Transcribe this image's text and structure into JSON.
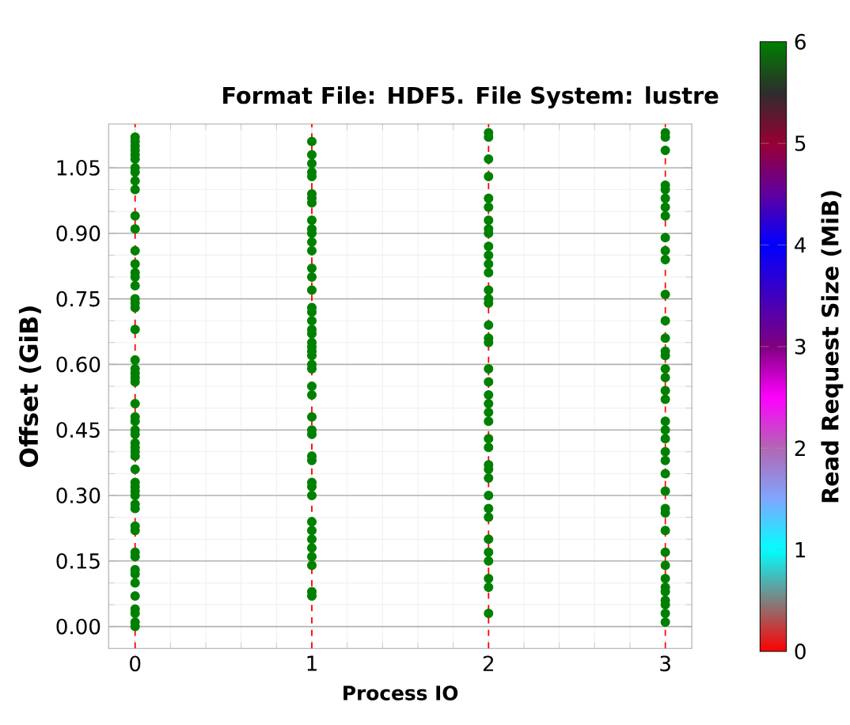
{
  "chart_data": {
    "type": "scatter",
    "title": "Format File: HDF5. File System: lustre",
    "xlabel": "Process IO",
    "ylabel": "Offset (GiB)",
    "clabel": "Read Request Size (MiB)",
    "xlim": [
      -0.15,
      3.15
    ],
    "ylim": [
      -0.05,
      1.15
    ],
    "xticks": [
      0,
      1,
      2,
      3
    ],
    "yticks": [
      {
        "value": 0,
        "label": "0.00"
      },
      {
        "value": 0.15,
        "label": "0.15"
      },
      {
        "value": 0.3,
        "label": "0.30"
      },
      {
        "value": 0.45,
        "label": "0.45"
      },
      {
        "value": 0.6,
        "label": "0.60"
      },
      {
        "value": 0.75,
        "label": "0.75"
      },
      {
        "value": 0.9,
        "label": "0.90"
      },
      {
        "value": 1.05,
        "label": "1.05"
      }
    ],
    "clim": [
      0,
      6
    ],
    "cticks": [
      0,
      1,
      2,
      3,
      4,
      5,
      6
    ],
    "grid": true,
    "marker": "circle",
    "ref_lines": [
      {
        "axis": "x",
        "value": 0,
        "color": "#ff0000",
        "line_style": "dashed"
      },
      {
        "axis": "x",
        "value": 1,
        "color": "#ff0000",
        "line_style": "dashed"
      },
      {
        "axis": "x",
        "value": 2,
        "color": "#ff0000",
        "line_style": "dashed"
      },
      {
        "axis": "x",
        "value": 3,
        "color": "#ff0000",
        "line_style": "dashed"
      }
    ],
    "series": [
      {
        "x": [
          0,
          0,
          0,
          0,
          0,
          0,
          0,
          0,
          0,
          0,
          0,
          0,
          0,
          0,
          0,
          0,
          0,
          0,
          0,
          0,
          0,
          0,
          0,
          0,
          0,
          0,
          0,
          0,
          0,
          0,
          0,
          0,
          0,
          0,
          0,
          0,
          0,
          0,
          0,
          0,
          0,
          0,
          0,
          0,
          0,
          0,
          0,
          0,
          0,
          0,
          0,
          0,
          0,
          0
        ],
        "values": [
          0.0,
          0.01,
          0.03,
          0.04,
          0.07,
          0.1,
          0.12,
          0.13,
          0.16,
          0.17,
          0.22,
          0.23,
          0.27,
          0.28,
          0.3,
          0.31,
          0.32,
          0.33,
          0.36,
          0.39,
          0.4,
          0.41,
          0.42,
          0.44,
          0.45,
          0.47,
          0.48,
          0.51,
          0.56,
          0.57,
          0.58,
          0.59,
          0.61,
          0.68,
          0.73,
          0.74,
          0.75,
          0.78,
          0.8,
          0.81,
          0.83,
          0.86,
          0.91,
          0.94,
          1.0,
          1.02,
          1.04,
          1.05,
          1.07,
          1.08,
          1.09,
          1.1,
          1.11,
          1.12
        ],
        "cvalues": [
          6,
          6,
          6,
          6,
          6,
          6,
          6,
          6,
          6,
          6,
          6,
          6,
          6,
          6,
          6,
          6,
          6,
          6,
          6,
          6,
          6,
          6,
          6,
          6,
          6,
          6,
          6,
          6,
          6,
          6,
          6,
          6,
          6,
          6,
          6,
          6,
          6,
          6,
          6,
          6,
          6,
          6,
          6,
          6,
          6,
          6,
          6,
          6,
          6,
          6,
          6,
          6,
          6,
          6
        ]
      },
      {
        "x": [
          1,
          1,
          1,
          1,
          1,
          1,
          1,
          1,
          1,
          1,
          1,
          1,
          1,
          1,
          1,
          1,
          1,
          1,
          1,
          1,
          1,
          1,
          1,
          1,
          1,
          1,
          1,
          1,
          1,
          1,
          1,
          1,
          1,
          1,
          1,
          1,
          1,
          1,
          1,
          1,
          1,
          1,
          1,
          1,
          1
        ],
        "values": [
          0.07,
          0.08,
          0.14,
          0.16,
          0.18,
          0.2,
          0.22,
          0.24,
          0.3,
          0.32,
          0.33,
          0.38,
          0.39,
          0.44,
          0.45,
          0.48,
          0.53,
          0.55,
          0.59,
          0.6,
          0.62,
          0.63,
          0.64,
          0.65,
          0.67,
          0.68,
          0.7,
          0.72,
          0.73,
          0.77,
          0.8,
          0.82,
          0.86,
          0.88,
          0.9,
          0.91,
          0.93,
          0.97,
          0.98,
          0.99,
          1.03,
          1.04,
          1.06,
          1.08,
          1.11
        ],
        "cvalues": [
          6,
          6,
          6,
          6,
          6,
          6,
          6,
          6,
          6,
          6,
          6,
          6,
          6,
          6,
          6,
          6,
          6,
          6,
          6,
          6,
          6,
          6,
          6,
          6,
          6,
          6,
          6,
          6,
          6,
          6,
          6,
          6,
          6,
          6,
          6,
          6,
          6,
          6,
          6,
          6,
          6,
          6,
          6,
          6,
          6
        ]
      },
      {
        "x": [
          2,
          2,
          2,
          2,
          2,
          2,
          2,
          2,
          2,
          2,
          2,
          2,
          2,
          2,
          2,
          2,
          2,
          2,
          2,
          2,
          2,
          2,
          2,
          2,
          2,
          2,
          2,
          2,
          2,
          2,
          2,
          2,
          2,
          2,
          2,
          2,
          2,
          2,
          2
        ],
        "values": [
          0.03,
          0.09,
          0.11,
          0.15,
          0.17,
          0.2,
          0.25,
          0.27,
          0.3,
          0.34,
          0.36,
          0.37,
          0.41,
          0.43,
          0.47,
          0.49,
          0.51,
          0.53,
          0.56,
          0.59,
          0.65,
          0.66,
          0.69,
          0.74,
          0.75,
          0.77,
          0.81,
          0.83,
          0.85,
          0.87,
          0.9,
          0.91,
          0.93,
          0.96,
          0.98,
          1.03,
          1.07,
          1.12,
          1.13
        ],
        "cvalues": [
          6,
          6,
          6,
          6,
          6,
          6,
          6,
          6,
          6,
          6,
          6,
          6,
          6,
          6,
          6,
          6,
          6,
          6,
          6,
          6,
          6,
          6,
          6,
          6,
          6,
          6,
          6,
          6,
          6,
          6,
          6,
          6,
          6,
          6,
          6,
          6,
          6,
          6,
          6
        ]
      },
      {
        "x": [
          3,
          3,
          3,
          3,
          3,
          3,
          3,
          3,
          3,
          3,
          3,
          3,
          3,
          3,
          3,
          3,
          3,
          3,
          3,
          3,
          3,
          3,
          3,
          3,
          3,
          3,
          3,
          3,
          3,
          3,
          3,
          3,
          3,
          3,
          3,
          3,
          3,
          3,
          3
        ],
        "values": [
          0.01,
          0.03,
          0.05,
          0.06,
          0.08,
          0.09,
          0.11,
          0.14,
          0.17,
          0.22,
          0.26,
          0.27,
          0.31,
          0.35,
          0.38,
          0.4,
          0.43,
          0.45,
          0.47,
          0.52,
          0.54,
          0.57,
          0.59,
          0.62,
          0.63,
          0.66,
          0.7,
          0.76,
          0.84,
          0.86,
          0.89,
          0.94,
          0.96,
          0.98,
          1.0,
          1.01,
          1.09,
          1.12,
          1.13
        ],
        "cvalues": [
          6,
          6,
          6,
          6,
          6,
          6,
          6,
          6,
          6,
          6,
          6,
          6,
          6,
          6,
          6,
          6,
          6,
          6,
          6,
          6,
          6,
          6,
          6,
          6,
          6,
          6,
          6,
          6,
          6,
          6,
          6,
          6,
          6,
          6,
          6,
          6,
          6,
          6,
          6
        ]
      }
    ]
  }
}
